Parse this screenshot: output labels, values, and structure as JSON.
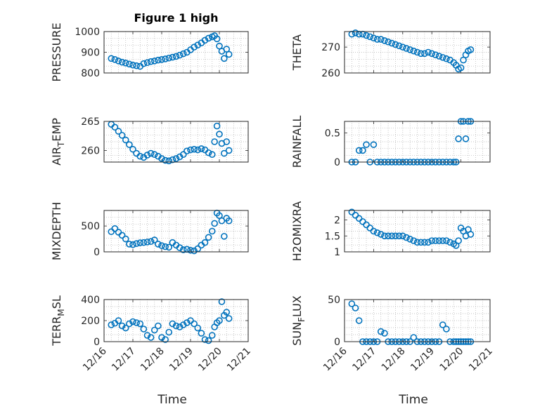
{
  "chart_data": {
    "type": "scatter",
    "marker_color": "#0072BD",
    "x_ticks": [
      "12/16",
      "12/17",
      "12/18",
      "12/19",
      "12/20",
      "12/21"
    ],
    "xlim": [
      "12/16",
      "12/21"
    ],
    "grid": true,
    "panels": [
      {
        "title": "Figure 1 high",
        "ylabel": "PRESSURE",
        "ylim": [
          800,
          1000
        ],
        "yticks": [
          "800",
          "900",
          "1000"
        ],
        "x": [
          "12/16 06:00",
          "12/16 09:00",
          "12/16 12:00",
          "12/16 15:00",
          "12/16 18:00",
          "12/16 21:00",
          "12/17 00:00",
          "12/17 03:00",
          "12/17 06:00",
          "12/17 09:00",
          "12/17 12:00",
          "12/17 15:00",
          "12/17 18:00",
          "12/17 21:00",
          "12/18 00:00",
          "12/18 03:00",
          "12/18 06:00",
          "12/18 09:00",
          "12/18 12:00",
          "12/18 15:00",
          "12/18 18:00",
          "12/18 21:00",
          "12/19 00:00",
          "12/19 03:00",
          "12/19 06:00",
          "12/19 09:00",
          "12/19 12:00",
          "12/19 15:00",
          "12/19 18:00",
          "12/19 20:00",
          "12/19 22:00",
          "12/20 00:00",
          "12/20 02:00",
          "12/20 04:00",
          "12/20 06:00",
          "12/20 08:00"
        ],
        "values": [
          870,
          865,
          858,
          852,
          848,
          843,
          838,
          835,
          832,
          845,
          850,
          855,
          858,
          862,
          865,
          868,
          872,
          876,
          880,
          886,
          893,
          900,
          912,
          925,
          935,
          945,
          958,
          968,
          975,
          980,
          965,
          930,
          905,
          870,
          915,
          890
        ]
      },
      {
        "title": "",
        "ylabel": "THETA",
        "ylim": [
          260,
          276
        ],
        "yticks": [
          "260",
          "270"
        ],
        "x": [
          "12/16 06:00",
          "12/16 09:00",
          "12/16 12:00",
          "12/16 15:00",
          "12/16 18:00",
          "12/16 21:00",
          "12/17 00:00",
          "12/17 03:00",
          "12/17 06:00",
          "12/17 09:00",
          "12/17 12:00",
          "12/17 15:00",
          "12/17 18:00",
          "12/17 21:00",
          "12/18 00:00",
          "12/18 03:00",
          "12/18 06:00",
          "12/18 09:00",
          "12/18 12:00",
          "12/18 15:00",
          "12/18 18:00",
          "12/18 21:00",
          "12/19 00:00",
          "12/19 03:00",
          "12/19 06:00",
          "12/19 09:00",
          "12/19 12:00",
          "12/19 15:00",
          "12/19 18:00",
          "12/19 20:00",
          "12/19 22:00",
          "12/20 00:00",
          "12/20 02:00",
          "12/20 04:00",
          "12/20 06:00",
          "12/20 08:00"
        ],
        "values": [
          275,
          275.5,
          275,
          275,
          274.5,
          274,
          273.5,
          273,
          273,
          272.5,
          272,
          271.5,
          271,
          270.5,
          270,
          269.5,
          269,
          268.5,
          268,
          267.5,
          267.5,
          268,
          267.5,
          267,
          266.5,
          266,
          265.5,
          265,
          264,
          263,
          261.5,
          262,
          265,
          267,
          268.5,
          269
        ]
      },
      {
        "title": "",
        "ylabel": "AIR_TEMP",
        "ylim": [
          258,
          265
        ],
        "yticks": [
          "260",
          "265"
        ],
        "x": [
          "12/16 06:00",
          "12/16 09:00",
          "12/16 12:00",
          "12/16 15:00",
          "12/16 18:00",
          "12/16 21:00",
          "12/17 00:00",
          "12/17 03:00",
          "12/17 06:00",
          "12/17 09:00",
          "12/17 12:00",
          "12/17 15:00",
          "12/17 18:00",
          "12/17 21:00",
          "12/18 00:00",
          "12/18 03:00",
          "12/18 06:00",
          "12/18 09:00",
          "12/18 12:00",
          "12/18 15:00",
          "12/18 18:00",
          "12/18 21:00",
          "12/19 00:00",
          "12/19 03:00",
          "12/19 06:00",
          "12/19 09:00",
          "12/19 12:00",
          "12/19 15:00",
          "12/19 18:00",
          "12/19 20:00",
          "12/19 22:00",
          "12/20 00:00",
          "12/20 02:00",
          "12/20 04:00",
          "12/20 06:00",
          "12/20 08:00"
        ],
        "values": [
          264.5,
          264,
          263.3,
          262.6,
          261.8,
          261,
          260.2,
          259.5,
          259,
          258.8,
          259.2,
          259.5,
          259.3,
          259,
          258.6,
          258.3,
          258.2,
          258.4,
          258.6,
          258.9,
          259.3,
          259.9,
          260.1,
          260.2,
          260.1,
          260.3,
          260.1,
          259.6,
          259.3,
          261.5,
          264.2,
          262.8,
          261.2,
          259.5,
          261.5,
          260
        ]
      },
      {
        "title": "",
        "ylabel": "RAINFALL",
        "ylim": [
          0,
          0.7
        ],
        "yticks": [
          "0",
          "0.5"
        ],
        "x": [
          "12/16 06:00",
          "12/16 09:00",
          "12/16 12:00",
          "12/16 15:00",
          "12/16 18:00",
          "12/16 21:00",
          "12/17 00:00",
          "12/17 03:00",
          "12/17 06:00",
          "12/17 09:00",
          "12/17 12:00",
          "12/17 15:00",
          "12/17 18:00",
          "12/17 21:00",
          "12/18 00:00",
          "12/18 03:00",
          "12/18 06:00",
          "12/18 09:00",
          "12/18 12:00",
          "12/18 15:00",
          "12/18 18:00",
          "12/18 21:00",
          "12/19 00:00",
          "12/19 03:00",
          "12/19 06:00",
          "12/19 09:00",
          "12/19 12:00",
          "12/19 15:00",
          "12/19 18:00",
          "12/19 20:00",
          "12/19 22:00",
          "12/20 00:00",
          "12/20 02:00",
          "12/20 04:00",
          "12/20 06:00",
          "12/20 08:00"
        ],
        "values": [
          0,
          0,
          0.2,
          0.2,
          0.3,
          0,
          0.3,
          0,
          0,
          0,
          0,
          0,
          0,
          0,
          0,
          0,
          0,
          0,
          0,
          0,
          0,
          0,
          0,
          0,
          0,
          0,
          0,
          0,
          0,
          0,
          0.4,
          0.7,
          0.7,
          0.4,
          0.7,
          0.7
        ]
      },
      {
        "title": "",
        "ylabel": "MIXDEPTH",
        "ylim": [
          0,
          800
        ],
        "yticks": [
          "0",
          "500"
        ],
        "x": [
          "12/16 06:00",
          "12/16 09:00",
          "12/16 12:00",
          "12/16 15:00",
          "12/16 18:00",
          "12/16 21:00",
          "12/17 00:00",
          "12/17 03:00",
          "12/17 06:00",
          "12/17 09:00",
          "12/17 12:00",
          "12/17 15:00",
          "12/17 18:00",
          "12/17 21:00",
          "12/18 00:00",
          "12/18 03:00",
          "12/18 06:00",
          "12/18 09:00",
          "12/18 12:00",
          "12/18 15:00",
          "12/18 18:00",
          "12/18 21:00",
          "12/19 00:00",
          "12/19 03:00",
          "12/19 06:00",
          "12/19 09:00",
          "12/19 12:00",
          "12/19 15:00",
          "12/19 18:00",
          "12/19 20:00",
          "12/19 22:00",
          "12/20 00:00",
          "12/20 02:00",
          "12/20 04:00",
          "12/20 06:00",
          "12/20 08:00"
        ],
        "values": [
          390,
          450,
          380,
          320,
          250,
          150,
          140,
          160,
          175,
          180,
          190,
          200,
          230,
          150,
          120,
          100,
          90,
          180,
          130,
          80,
          40,
          50,
          30,
          20,
          60,
          130,
          180,
          280,
          400,
          550,
          750,
          700,
          600,
          300,
          650,
          600
        ]
      },
      {
        "title": "",
        "ylabel": "H2OMIXRA",
        "ylim": [
          1,
          2.3
        ],
        "yticks": [
          "1",
          "1.5",
          "2"
        ],
        "x": [
          "12/16 06:00",
          "12/16 09:00",
          "12/16 12:00",
          "12/16 15:00",
          "12/16 18:00",
          "12/16 21:00",
          "12/17 00:00",
          "12/17 03:00",
          "12/17 06:00",
          "12/17 09:00",
          "12/17 12:00",
          "12/17 15:00",
          "12/17 18:00",
          "12/17 21:00",
          "12/18 00:00",
          "12/18 03:00",
          "12/18 06:00",
          "12/18 09:00",
          "12/18 12:00",
          "12/18 15:00",
          "12/18 18:00",
          "12/18 21:00",
          "12/19 00:00",
          "12/19 03:00",
          "12/19 06:00",
          "12/19 09:00",
          "12/19 12:00",
          "12/19 15:00",
          "12/19 18:00",
          "12/19 20:00",
          "12/19 22:00",
          "12/20 00:00",
          "12/20 02:00",
          "12/20 04:00",
          "12/20 06:00",
          "12/20 08:00"
        ],
        "values": [
          2.25,
          2.15,
          2.05,
          1.95,
          1.85,
          1.75,
          1.65,
          1.6,
          1.55,
          1.5,
          1.5,
          1.5,
          1.5,
          1.5,
          1.5,
          1.45,
          1.4,
          1.35,
          1.3,
          1.3,
          1.3,
          1.3,
          1.35,
          1.35,
          1.35,
          1.35,
          1.35,
          1.3,
          1.25,
          1.2,
          1.35,
          1.75,
          1.65,
          1.5,
          1.7,
          1.55
        ]
      },
      {
        "title": "",
        "ylabel": "TERR_MSL",
        "ylim": [
          0,
          400
        ],
        "yticks": [
          "0",
          "200",
          "400"
        ],
        "x": [
          "12/16 06:00",
          "12/16 09:00",
          "12/16 12:00",
          "12/16 15:00",
          "12/16 18:00",
          "12/16 21:00",
          "12/17 00:00",
          "12/17 03:00",
          "12/17 06:00",
          "12/17 09:00",
          "12/17 12:00",
          "12/17 15:00",
          "12/17 18:00",
          "12/17 21:00",
          "12/18 00:00",
          "12/18 03:00",
          "12/18 06:00",
          "12/18 09:00",
          "12/18 12:00",
          "12/18 15:00",
          "12/18 18:00",
          "12/18 21:00",
          "12/19 00:00",
          "12/19 03:00",
          "12/19 06:00",
          "12/19 09:00",
          "12/19 12:00",
          "12/19 15:00",
          "12/19 18:00",
          "12/19 20:00",
          "12/19 22:00",
          "12/20 00:00",
          "12/20 02:00",
          "12/20 04:00",
          "12/20 06:00",
          "12/20 08:00"
        ],
        "values": [
          160,
          175,
          200,
          150,
          130,
          170,
          190,
          180,
          170,
          120,
          60,
          40,
          110,
          150,
          40,
          20,
          90,
          170,
          150,
          140,
          160,
          180,
          200,
          170,
          130,
          80,
          20,
          10,
          60,
          140,
          180,
          200,
          380,
          250,
          280,
          220
        ]
      },
      {
        "title": "",
        "ylabel": "SUN_FLUX",
        "ylim": [
          0,
          50
        ],
        "yticks": [
          "0",
          "50"
        ],
        "x": [
          "12/16 06:00",
          "12/16 09:00",
          "12/16 12:00",
          "12/16 15:00",
          "12/16 18:00",
          "12/16 21:00",
          "12/17 00:00",
          "12/17 03:00",
          "12/17 06:00",
          "12/17 09:00",
          "12/17 12:00",
          "12/17 15:00",
          "12/17 18:00",
          "12/17 21:00",
          "12/18 00:00",
          "12/18 03:00",
          "12/18 06:00",
          "12/18 09:00",
          "12/18 12:00",
          "12/18 15:00",
          "12/18 18:00",
          "12/18 21:00",
          "12/19 00:00",
          "12/19 03:00",
          "12/19 06:00",
          "12/19 09:00",
          "12/19 12:00",
          "12/19 15:00",
          "12/19 18:00",
          "12/19 20:00",
          "12/19 22:00",
          "12/20 00:00",
          "12/20 02:00",
          "12/20 04:00",
          "12/20 06:00",
          "12/20 08:00"
        ],
        "values": [
          45,
          40,
          25,
          0,
          0,
          0,
          0,
          0,
          12,
          10,
          0,
          0,
          0,
          0,
          0,
          0,
          0,
          5,
          0,
          0,
          0,
          0,
          0,
          0,
          0,
          20,
          15,
          0,
          0,
          0,
          0,
          0,
          0,
          0,
          0,
          0
        ]
      }
    ],
    "xlabel_left": "Time",
    "xlabel_right": "Time"
  }
}
